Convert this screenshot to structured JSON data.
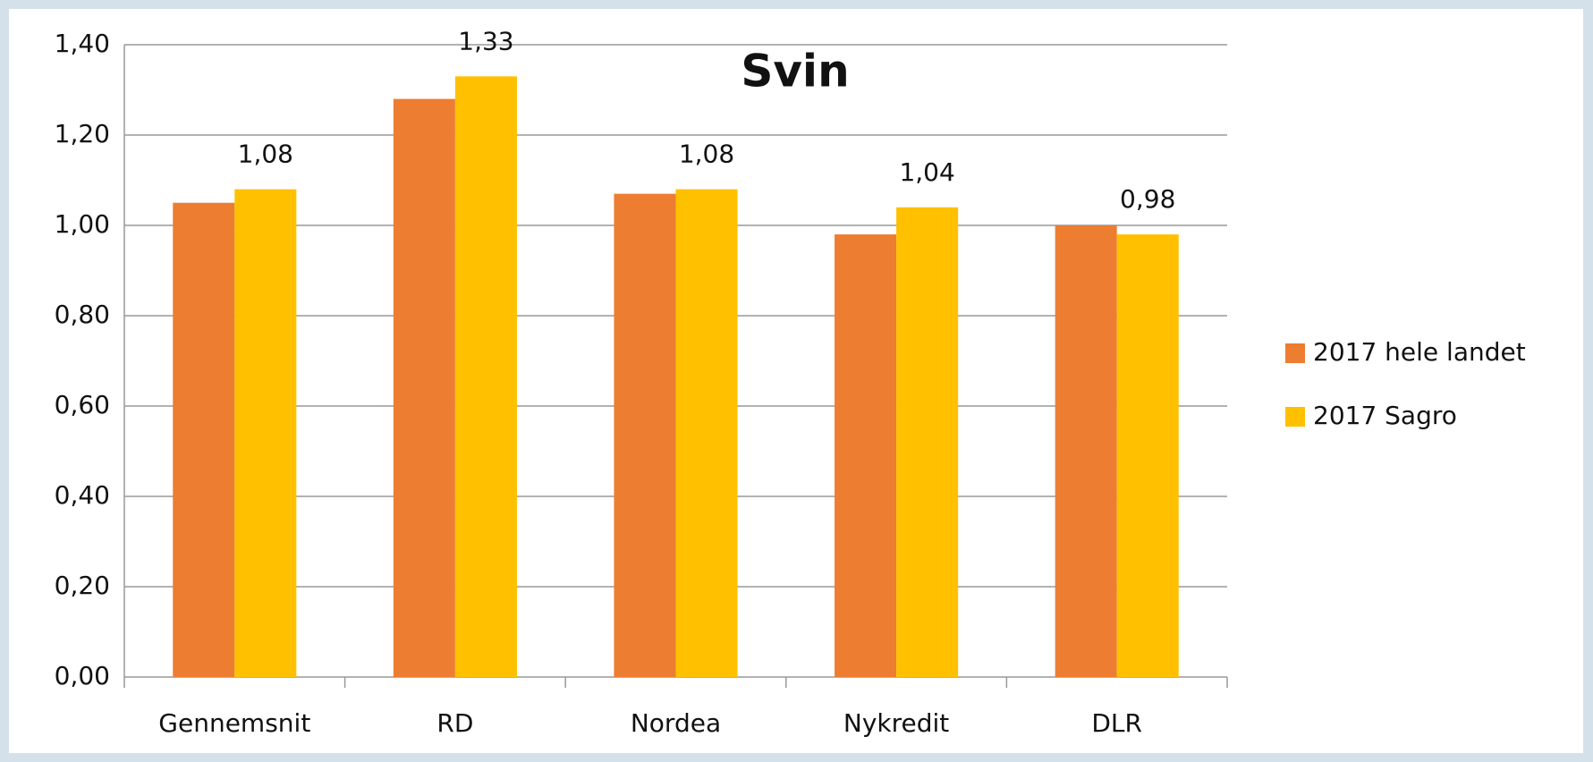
{
  "chart_data": {
    "type": "bar",
    "title": "Svin",
    "categories": [
      "Gennemsnit",
      "RD",
      "Nordea",
      "Nykredit",
      "DLR"
    ],
    "series": [
      {
        "name": "2017 hele landet",
        "color": "#ed7d31",
        "values": [
          1.05,
          1.28,
          1.07,
          0.98,
          1.0
        ]
      },
      {
        "name": "2017 Sagro",
        "color": "#ffc000",
        "values": [
          1.08,
          1.33,
          1.08,
          1.04,
          0.98
        ],
        "value_labels": [
          "1,08",
          "1,33",
          "1,08",
          "1,04",
          "0,98"
        ]
      }
    ],
    "ylim": [
      0,
      1.4
    ],
    "yticks": [
      {
        "value": 0,
        "label": "0,00"
      },
      {
        "value": 0.2,
        "label": "0,20"
      },
      {
        "value": 0.4,
        "label": "0,40"
      },
      {
        "value": 0.6,
        "label": "0,60"
      },
      {
        "value": 0.8,
        "label": "0,80"
      },
      {
        "value": 1.0,
        "label": "1,00"
      },
      {
        "value": 1.2,
        "label": "1,20"
      },
      {
        "value": 1.4,
        "label": "1,40"
      }
    ],
    "grid": true,
    "legend": "right"
  }
}
